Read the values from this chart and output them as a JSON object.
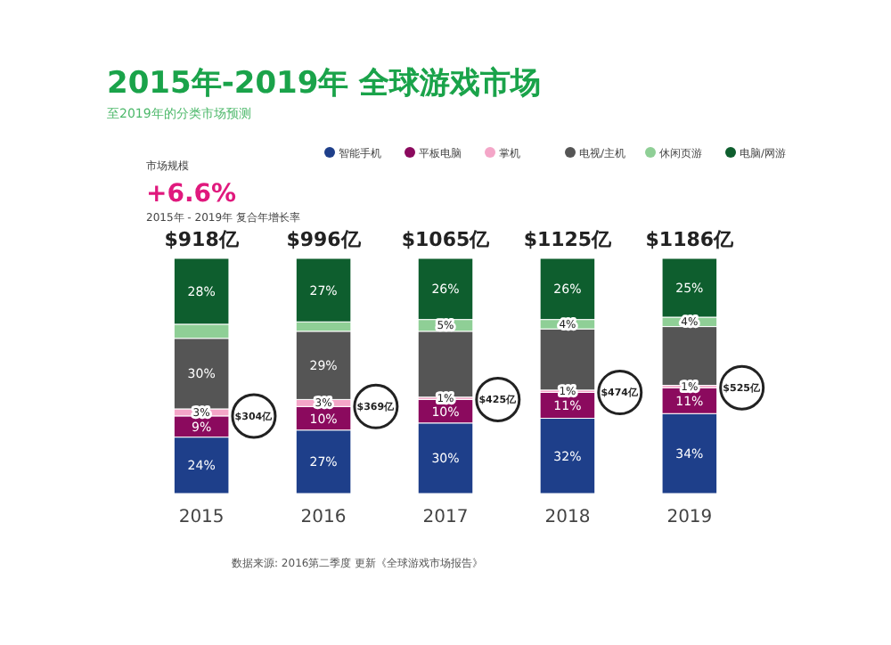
{
  "chart_data": {
    "type": "bar",
    "stacked": true,
    "title": "2015年-2019年 全球游戏市场",
    "subtitle": "至2019年的分类市场预测",
    "categories": [
      "2015",
      "2016",
      "2017",
      "2018",
      "2019"
    ],
    "series": [
      {
        "name": "智能手机",
        "color": "#1e3f8a",
        "values": [
          24,
          27,
          30,
          32,
          34
        ],
        "value_labels": [
          "24%",
          "27%",
          "30%",
          "32%",
          "34%"
        ]
      },
      {
        "name": "平板电脑",
        "color": "#8b0a5e",
        "values": [
          9,
          10,
          10,
          11,
          11
        ],
        "value_labels": [
          "9%",
          "10%",
          "10%",
          "11%",
          "11%"
        ]
      },
      {
        "name": "掌机",
        "color": "#f4a6c8",
        "values": [
          3,
          3,
          1,
          1,
          1
        ],
        "value_labels": [
          "3%",
          "3%",
          "1%",
          "1%",
          "1%"
        ]
      },
      {
        "name": "电视/主机",
        "color": "#555555",
        "values": [
          30,
          29,
          28,
          26,
          25
        ],
        "value_labels": [
          "30%",
          "29%",
          null,
          null,
          null
        ]
      },
      {
        "name": "休闲页游",
        "color": "#8fcf96",
        "values": [
          6,
          4,
          5,
          4,
          4
        ],
        "value_labels": [
          null,
          null,
          "5%",
          "4%",
          "4%"
        ]
      },
      {
        "name": "电脑/网游",
        "color": "#0e5e2e",
        "values": [
          28,
          27,
          26,
          26,
          25
        ],
        "value_labels": [
          "28%",
          "27%",
          "26%",
          "26%",
          "25%"
        ]
      }
    ],
    "ylim": [
      0,
      100
    ],
    "tick_labels": "x",
    "legend": "top",
    "grid": false,
    "annotations": [
      "市场规模",
      "+6.6%",
      "2015年 - 2019年 复合年增长率",
      {
        "text": "$918亿",
        "x": "2015",
        "y": 100
      },
      {
        "text": "$996亿",
        "x": "2016",
        "y": 100
      },
      {
        "text": "$1065亿",
        "x": "2017",
        "y": 100
      },
      {
        "text": "$1125亿",
        "x": "2018",
        "y": 100
      },
      {
        "text": "$1186亿",
        "x": "2019",
        "y": 100
      },
      "$304亿",
      "$369亿",
      "$425亿",
      "$474亿",
      "$525亿",
      "数据来源: 2016第二季度 更新《全球游戏市场报告》"
    ]
  }
}
